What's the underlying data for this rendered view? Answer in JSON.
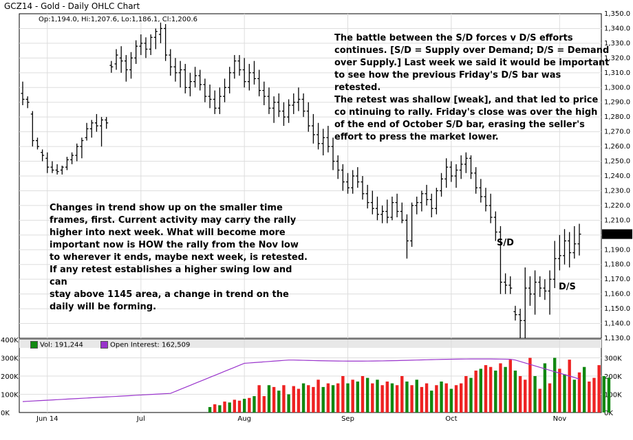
{
  "title": "GCZ14 - Gold - Daily OHLC Chart",
  "readout": {
    "ohlc": "Op:1,194.0, Hi:1,207.6, Lo:1,186.1, Cl:1,200.6",
    "volume": "Vol: 191,244",
    "open_interest": "Open Interest: 162,509",
    "last_price": "1,200.6"
  },
  "colors": {
    "up": "#118811",
    "down": "#ee2222",
    "bar": "#000000",
    "oi_line": "#9933cc",
    "grid": "#dddddd"
  },
  "notes": {
    "top": "The battle between the S/D forces v D/S efforts\ncontinues.  [S/D = Supply over Demand; D/S = Demand\nover Supply.]  Last week we said it would be important\nto see how the previous Friday's D/S bar was retested.\nThe retest was shallow [weak], and that led to price\nco  ntinuing to rally.  Friday's close was over the high\n     of the end of October S/D bar, erasing the seller's\n     effort to press the market lower.",
    "left": "Changes in trend show up on the smaller time\nframes, first.  Current activity may carry the rally\nhigher into next week.  What will become more\nimportant now is HOW the rally from the Nov low\nto wherever it ends, maybe next week, is retested.\nIf any retest establishes a higher swing low and can\nstay above 1145 area, a change in trend on the\ndaily will be forming."
  },
  "labels": {
    "sd": "S/D",
    "ds": "D/S"
  },
  "chart_data": {
    "type": "ohlc",
    "price_axis": {
      "min": 1130,
      "max": 1350,
      "ticks": [
        "1,130.0",
        "1,140.0",
        "1,150.0",
        "1,160.0",
        "1,170.0",
        "1,180.0",
        "1,190.0",
        "1,200.0",
        "1,210.0",
        "1,220.0",
        "1,230.0",
        "1,240.0",
        "1,250.0",
        "1,260.0",
        "1,270.0",
        "1,280.0",
        "1,290.0",
        "1,300.0",
        "1,310.0",
        "1,320.0",
        "1,330.0",
        "1,340.0",
        "1,350.0"
      ]
    },
    "volume_axis_left": {
      "max": 400000,
      "ticks": [
        "0K",
        "100K",
        "200K",
        "300K",
        "400K"
      ]
    },
    "volume_axis_right": {
      "ticks": [
        "0K",
        "100K",
        "200K",
        "300K"
      ]
    },
    "months": [
      {
        "label": "Jun 14",
        "bar": 5
      },
      {
        "label": "Jul",
        "bar": 24
      },
      {
        "label": "Aug",
        "bar": 45
      },
      {
        "label": "Sep",
        "bar": 66
      },
      {
        "label": "Oct",
        "bar": 87
      },
      {
        "label": "Nov",
        "bar": 109
      }
    ],
    "ohlc": [
      [
        1296,
        1304,
        1288,
        1292
      ],
      [
        1292,
        1294,
        1286,
        1290
      ],
      [
        1282,
        1284,
        1260,
        1264
      ],
      [
        1264,
        1266,
        1258,
        1260
      ],
      [
        1256,
        1258,
        1250,
        1254
      ],
      [
        1252,
        1256,
        1242,
        1246
      ],
      [
        1246,
        1250,
        1242,
        1244
      ],
      [
        1244,
        1248,
        1241,
        1243
      ],
      [
        1244,
        1247,
        1241,
        1246
      ],
      [
        1246,
        1253,
        1244,
        1251
      ],
      [
        1251,
        1256,
        1248,
        1254
      ],
      [
        1254,
        1262,
        1250,
        1260
      ],
      [
        1260,
        1266,
        1252,
        1264
      ],
      [
        1266,
        1276,
        1264,
        1272
      ],
      [
        1272,
        1278,
        1266,
        1276
      ],
      [
        1276,
        1282,
        1270,
        1274
      ],
      [
        1274,
        1280,
        1260,
        1278
      ],
      [
        1278,
        1280,
        1272,
        1276
      ],
      [
        1315,
        1318,
        1310,
        1314
      ],
      [
        1316,
        1326,
        1312,
        1322
      ],
      [
        1320,
        1328,
        1310,
        1318
      ],
      [
        1318,
        1322,
        1304,
        1312
      ],
      [
        1312,
        1324,
        1306,
        1320
      ],
      [
        1320,
        1332,
        1316,
        1328
      ],
      [
        1328,
        1336,
        1322,
        1330
      ],
      [
        1330,
        1334,
        1320,
        1326
      ],
      [
        1326,
        1336,
        1322,
        1334
      ],
      [
        1334,
        1340,
        1326,
        1338
      ],
      [
        1336,
        1344,
        1330,
        1340
      ],
      [
        1340,
        1343,
        1318,
        1322
      ],
      [
        1322,
        1326,
        1308,
        1314
      ],
      [
        1314,
        1320,
        1304,
        1310
      ],
      [
        1310,
        1318,
        1300,
        1312
      ],
      [
        1312,
        1316,
        1296,
        1300
      ],
      [
        1300,
        1310,
        1294,
        1304
      ],
      [
        1304,
        1314,
        1300,
        1308
      ],
      [
        1308,
        1312,
        1298,
        1302
      ],
      [
        1302,
        1306,
        1290,
        1294
      ],
      [
        1294,
        1302,
        1286,
        1292
      ],
      [
        1292,
        1298,
        1282,
        1286
      ],
      [
        1286,
        1300,
        1282,
        1294
      ],
      [
        1294,
        1306,
        1290,
        1300
      ],
      [
        1300,
        1314,
        1296,
        1310
      ],
      [
        1310,
        1322,
        1306,
        1318
      ],
      [
        1318,
        1322,
        1308,
        1312
      ],
      [
        1312,
        1320,
        1300,
        1304
      ],
      [
        1304,
        1316,
        1298,
        1310
      ],
      [
        1310,
        1318,
        1302,
        1306
      ],
      [
        1306,
        1312,
        1294,
        1298
      ],
      [
        1298,
        1304,
        1288,
        1294
      ],
      [
        1294,
        1300,
        1282,
        1286
      ],
      [
        1286,
        1294,
        1276,
        1290
      ],
      [
        1290,
        1296,
        1280,
        1284
      ],
      [
        1284,
        1290,
        1274,
        1280
      ],
      [
        1280,
        1292,
        1276,
        1288
      ],
      [
        1288,
        1296,
        1282,
        1290
      ],
      [
        1290,
        1300,
        1284,
        1292
      ],
      [
        1292,
        1296,
        1280,
        1284
      ],
      [
        1284,
        1290,
        1270,
        1274
      ],
      [
        1274,
        1282,
        1262,
        1268
      ],
      [
        1268,
        1276,
        1258,
        1262
      ],
      [
        1262,
        1272,
        1254,
        1266
      ],
      [
        1266,
        1274,
        1256,
        1260
      ],
      [
        1260,
        1266,
        1244,
        1250
      ],
      [
        1250,
        1254,
        1238,
        1244
      ],
      [
        1244,
        1248,
        1230,
        1236
      ],
      [
        1236,
        1242,
        1228,
        1232
      ],
      [
        1232,
        1244,
        1228,
        1240
      ],
      [
        1240,
        1246,
        1232,
        1236
      ],
      [
        1236,
        1240,
        1224,
        1228
      ],
      [
        1228,
        1234,
        1218,
        1222
      ],
      [
        1222,
        1230,
        1214,
        1218
      ],
      [
        1218,
        1226,
        1210,
        1214
      ],
      [
        1214,
        1220,
        1208,
        1216
      ],
      [
        1216,
        1224,
        1208,
        1212
      ],
      [
        1212,
        1226,
        1210,
        1222
      ],
      [
        1222,
        1228,
        1212,
        1216
      ],
      [
        1216,
        1222,
        1208,
        1210
      ],
      [
        1210,
        1214,
        1184,
        1196
      ],
      [
        1196,
        1222,
        1192,
        1220
      ],
      [
        1220,
        1226,
        1214,
        1222
      ],
      [
        1222,
        1230,
        1216,
        1228
      ],
      [
        1228,
        1234,
        1220,
        1224
      ],
      [
        1224,
        1228,
        1212,
        1218
      ],
      [
        1218,
        1232,
        1214,
        1230
      ],
      [
        1230,
        1242,
        1226,
        1238
      ],
      [
        1238,
        1252,
        1232,
        1246
      ],
      [
        1246,
        1250,
        1236,
        1240
      ],
      [
        1240,
        1248,
        1232,
        1244
      ],
      [
        1244,
        1254,
        1238,
        1248
      ],
      [
        1248,
        1256,
        1242,
        1252
      ],
      [
        1252,
        1254,
        1238,
        1242
      ],
      [
        1242,
        1246,
        1228,
        1232
      ],
      [
        1232,
        1238,
        1222,
        1226
      ],
      [
        1226,
        1232,
        1216,
        1220
      ],
      [
        1220,
        1228,
        1208,
        1212
      ],
      [
        1212,
        1216,
        1196,
        1202
      ],
      [
        1202,
        1206,
        1160,
        1168
      ],
      [
        1168,
        1174,
        1160,
        1166
      ],
      [
        1166,
        1172,
        1160,
        1164
      ],
      [
        1148,
        1152,
        1142,
        1146
      ],
      [
        1146,
        1150,
        1130,
        1142
      ],
      [
        1142,
        1178,
        1130,
        1164
      ],
      [
        1164,
        1172,
        1152,
        1160
      ],
      [
        1160,
        1176,
        1146,
        1168
      ],
      [
        1168,
        1172,
        1158,
        1164
      ],
      [
        1164,
        1170,
        1156,
        1162
      ],
      [
        1162,
        1176,
        1146,
        1170
      ],
      [
        1170,
        1196,
        1164,
        1184
      ],
      [
        1184,
        1200,
        1176,
        1186
      ],
      [
        1186,
        1204,
        1180,
        1196
      ],
      [
        1196,
        1202,
        1178,
        1188
      ],
      [
        1188,
        1206,
        1184,
        1194
      ],
      [
        1194,
        1207.6,
        1186.1,
        1200.6
      ]
    ],
    "volume": [
      [
        0,
        0
      ],
      [
        0,
        0
      ],
      [
        0,
        0
      ],
      [
        0,
        0
      ],
      [
        0,
        0
      ],
      [
        0,
        0
      ],
      [
        0,
        0
      ],
      [
        0,
        0
      ],
      [
        0,
        0
      ],
      [
        0,
        0
      ],
      [
        0,
        0
      ],
      [
        0,
        0
      ],
      [
        0,
        0
      ],
      [
        0,
        0
      ],
      [
        0,
        0
      ],
      [
        0,
        0
      ],
      [
        0,
        0
      ],
      [
        0,
        0
      ],
      [
        0,
        0
      ],
      [
        0,
        0
      ],
      [
        0,
        0
      ],
      [
        0,
        0
      ],
      [
        0,
        0
      ],
      [
        0,
        0
      ],
      [
        0,
        0
      ],
      [
        0,
        0
      ],
      [
        0,
        0
      ],
      [
        0,
        0
      ],
      [
        0,
        0
      ],
      [
        0,
        0
      ],
      [
        0,
        0
      ],
      [
        0,
        0
      ],
      [
        0,
        0
      ],
      [
        0,
        0
      ],
      [
        0,
        0
      ],
      [
        0,
        0
      ],
      [
        0,
        0
      ],
      [
        0,
        0
      ],
      [
        30000,
        1
      ],
      [
        45000,
        0
      ],
      [
        40000,
        1
      ],
      [
        60000,
        0
      ],
      [
        55000,
        1
      ],
      [
        70000,
        0
      ],
      [
        65000,
        0
      ],
      [
        75000,
        1
      ],
      [
        80000,
        0
      ],
      [
        90000,
        1
      ],
      [
        150000,
        0
      ],
      [
        90000,
        0
      ],
      [
        150000,
        1
      ],
      [
        140000,
        0
      ],
      [
        120000,
        1
      ],
      [
        150000,
        0
      ],
      [
        100000,
        1
      ],
      [
        145000,
        0
      ],
      [
        130000,
        0
      ],
      [
        160000,
        1
      ],
      [
        150000,
        0
      ],
      [
        140000,
        0
      ],
      [
        180000,
        0
      ],
      [
        140000,
        1
      ],
      [
        160000,
        0
      ],
      [
        150000,
        1
      ],
      [
        160000,
        0
      ],
      [
        200000,
        0
      ],
      [
        160000,
        1
      ],
      [
        180000,
        0
      ],
      [
        170000,
        1
      ],
      [
        200000,
        0
      ],
      [
        190000,
        1
      ],
      [
        160000,
        0
      ],
      [
        180000,
        1
      ],
      [
        150000,
        0
      ],
      [
        170000,
        0
      ],
      [
        160000,
        1
      ],
      [
        150000,
        0
      ],
      [
        200000,
        0
      ],
      [
        170000,
        1
      ],
      [
        150000,
        0
      ],
      [
        180000,
        1
      ],
      [
        140000,
        0
      ],
      [
        160000,
        0
      ],
      [
        120000,
        1
      ],
      [
        150000,
        0
      ],
      [
        170000,
        1
      ],
      [
        160000,
        0
      ],
      [
        130000,
        1
      ],
      [
        150000,
        0
      ],
      [
        160000,
        0
      ],
      [
        200000,
        0
      ],
      [
        190000,
        1
      ],
      [
        230000,
        0
      ],
      [
        240000,
        1
      ],
      [
        260000,
        0
      ],
      [
        250000,
        0
      ],
      [
        230000,
        1
      ],
      [
        270000,
        0
      ],
      [
        250000,
        1
      ],
      [
        290000,
        0
      ],
      [
        230000,
        1
      ],
      [
        200000,
        0
      ],
      [
        180000,
        0
      ],
      [
        300000,
        0
      ],
      [
        200000,
        1
      ],
      [
        130000,
        0
      ],
      [
        270000,
        1
      ],
      [
        160000,
        0
      ],
      [
        300000,
        1
      ],
      [
        240000,
        0
      ],
      [
        210000,
        1
      ],
      [
        290000,
        0
      ],
      [
        180000,
        1
      ],
      [
        220000,
        0
      ],
      [
        250000,
        1
      ],
      [
        170000,
        0
      ],
      [
        190000,
        0
      ],
      [
        260000,
        0
      ],
      [
        200000,
        1
      ],
      [
        191244,
        1
      ]
    ]
  }
}
